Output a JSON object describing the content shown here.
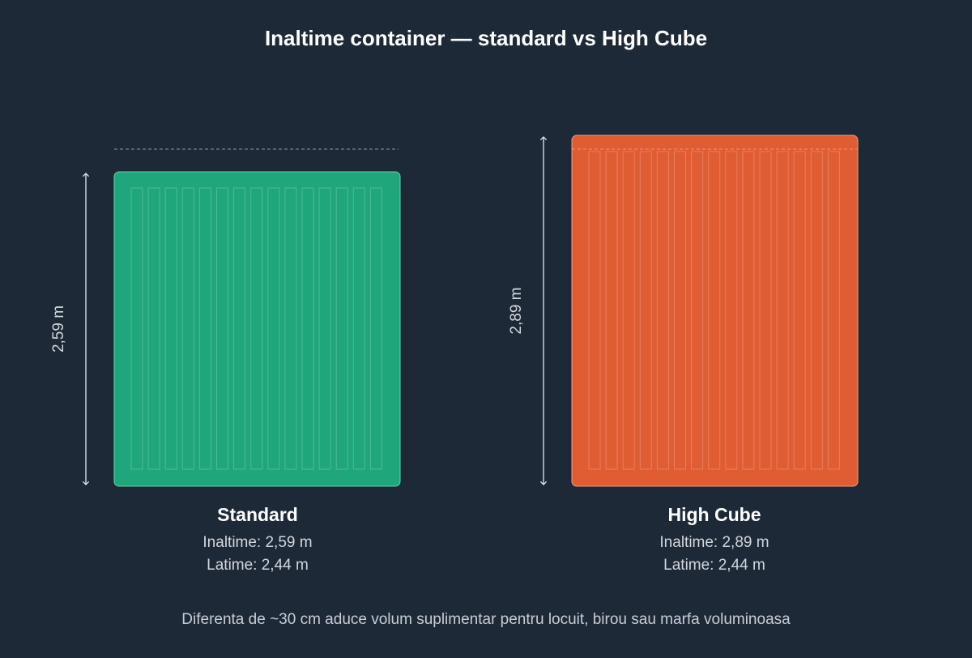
{
  "title": "Inaltime container — standard vs High Cube",
  "colors": {
    "background": "#1e2938",
    "standard": "#1fa67a",
    "high_cube": "#e05c33",
    "dimension_line": "#e6e9ee"
  },
  "containers": [
    {
      "name": "Standard",
      "height_label": "2,59 m",
      "height_line": "Inaltime: 2,59 m",
      "width_line": "Latime: 2,44 m",
      "height_m": 2.59,
      "width_m": 2.44
    },
    {
      "name": "High Cube",
      "height_label": "2,89 m",
      "height_line": "Inaltime: 2,89 m",
      "width_line": "Latime: 2,44 m",
      "height_m": 2.89,
      "width_m": 2.44
    }
  ],
  "footer": "Diferenta de ~30 cm aduce volum suplimentar pentru locuit, birou sau marfa voluminoasa"
}
